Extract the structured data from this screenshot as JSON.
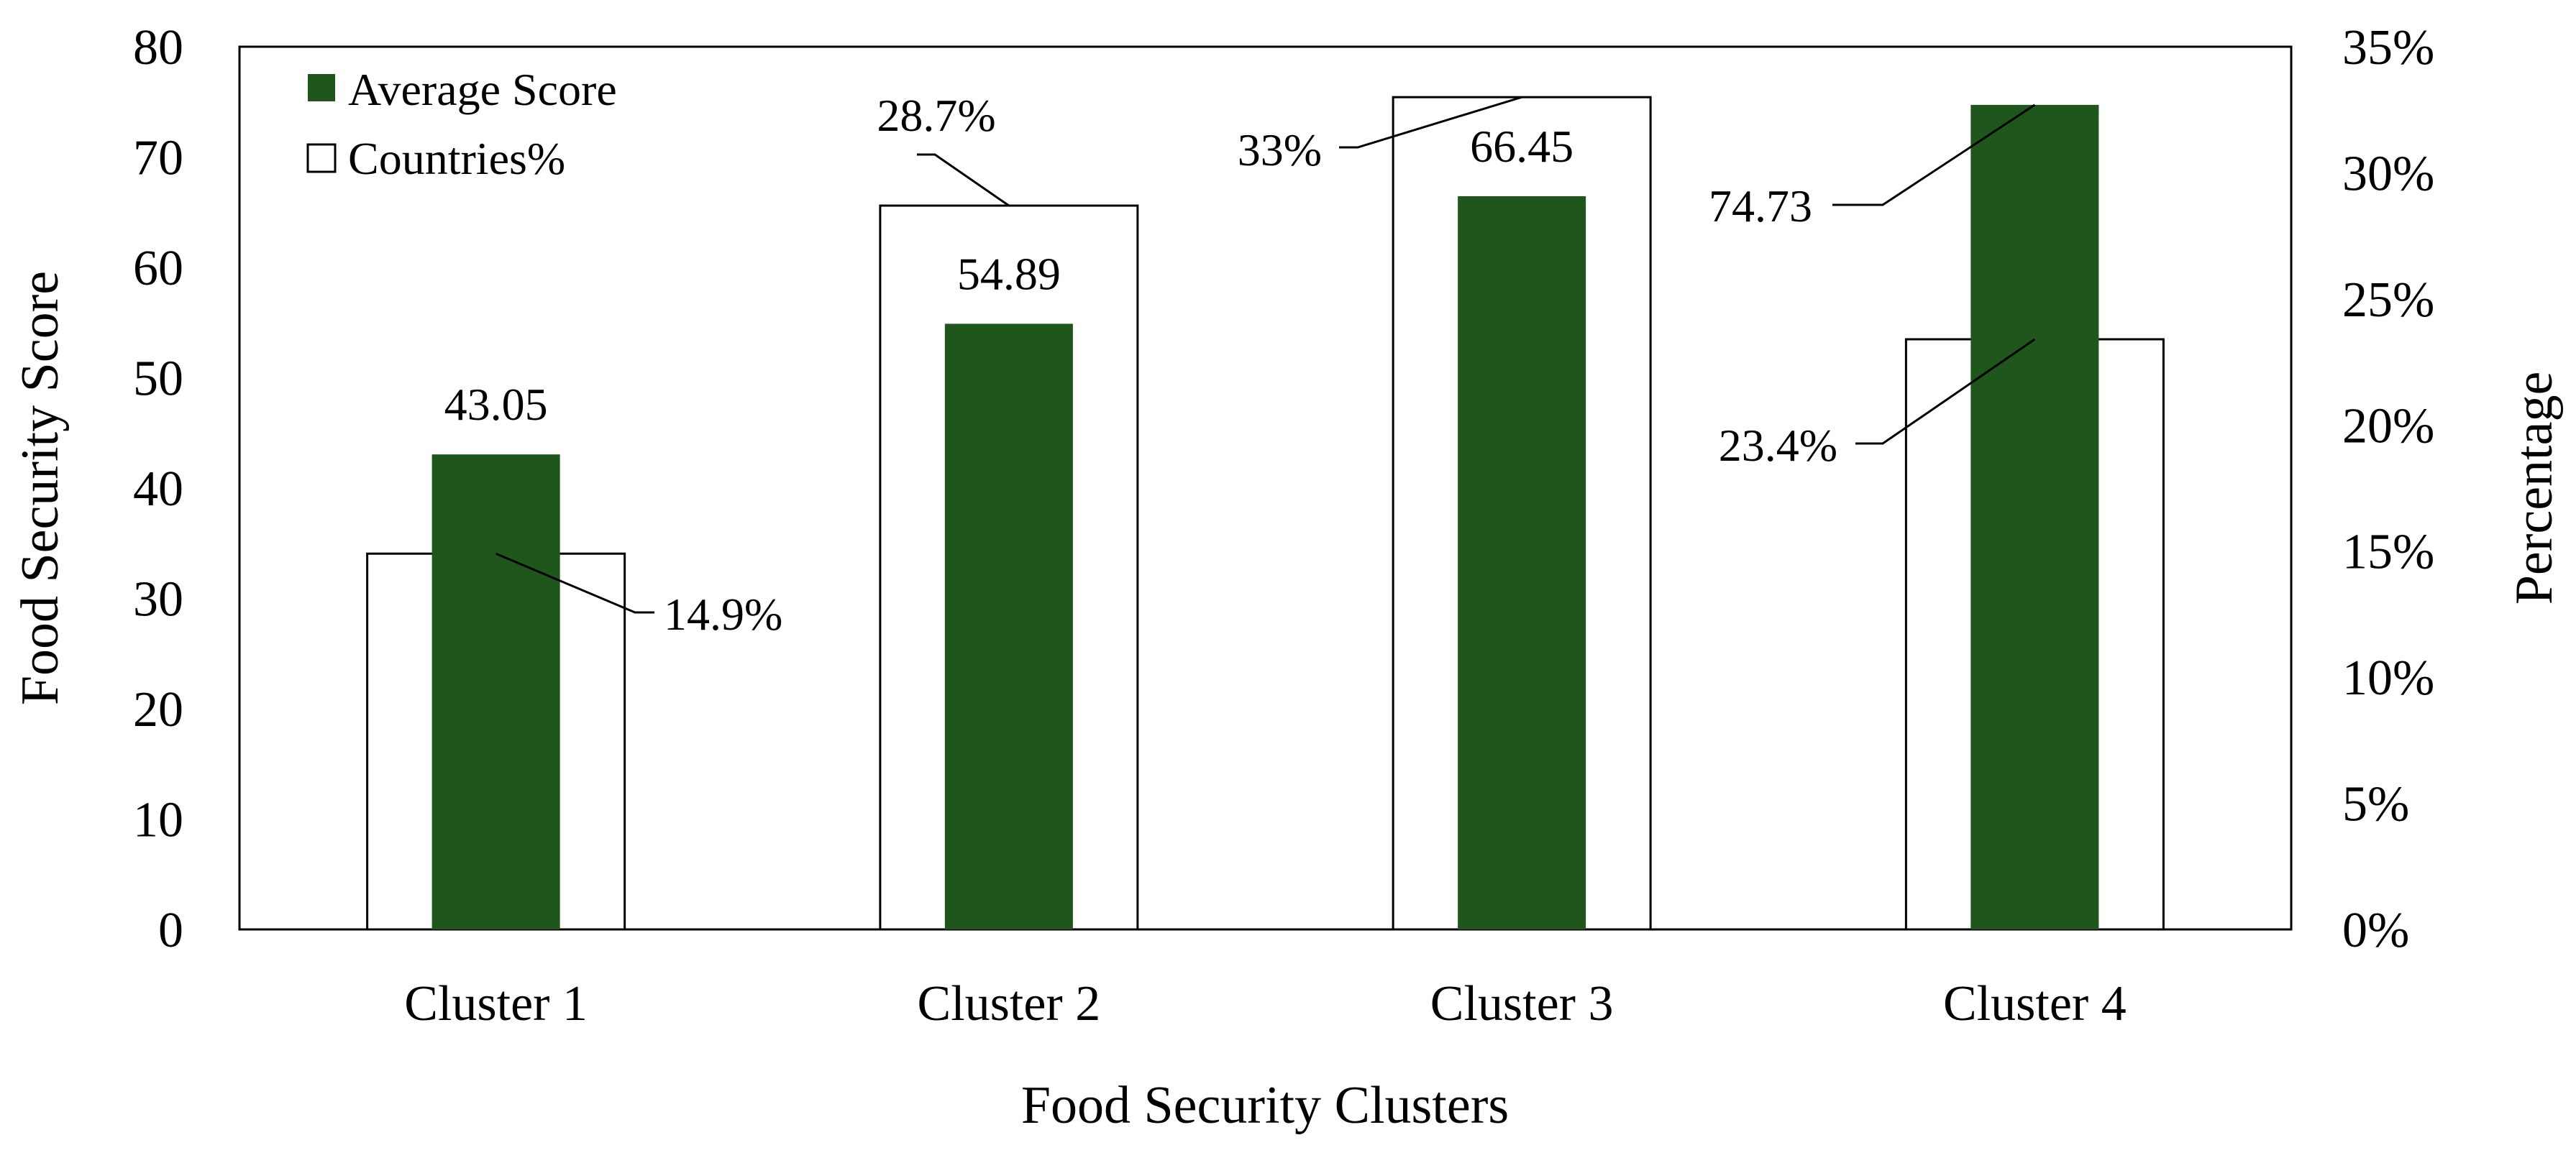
{
  "chart_data": {
    "type": "bar",
    "categories": [
      "Cluster 1",
      "Cluster 2",
      "Cluster 3",
      "Cluster 4"
    ],
    "series": [
      {
        "name": "Countries%",
        "axis": "right",
        "unit": "%",
        "values": [
          14.9,
          28.7,
          33,
          23.4
        ],
        "labels": [
          "14.9%",
          "28.7%",
          "33%",
          "23.4%"
        ],
        "fill": "#ffffff",
        "stroke": "#000000"
      },
      {
        "name": "Average Score",
        "axis": "left",
        "values": [
          43.05,
          54.89,
          66.45,
          74.73
        ],
        "labels": [
          "43.05",
          "54.89",
          "66.45",
          "74.73"
        ],
        "fill": "#1f561c"
      }
    ],
    "xlabel": "Food Security Clusters",
    "ylabel": "Food Security Score",
    "y2label": "Percentage",
    "ylim": [
      0,
      80
    ],
    "y2lim": [
      0,
      35
    ],
    "yticks": [
      "0",
      "10",
      "20",
      "30",
      "40",
      "50",
      "60",
      "70",
      "80"
    ],
    "y2ticks": [
      "0%",
      "5%",
      "10%",
      "15%",
      "20%",
      "25%",
      "30%",
      "35%"
    ],
    "legend": {
      "position": "top-left",
      "entries": [
        "Average Score",
        "Countries%"
      ]
    },
    "grid": false
  }
}
